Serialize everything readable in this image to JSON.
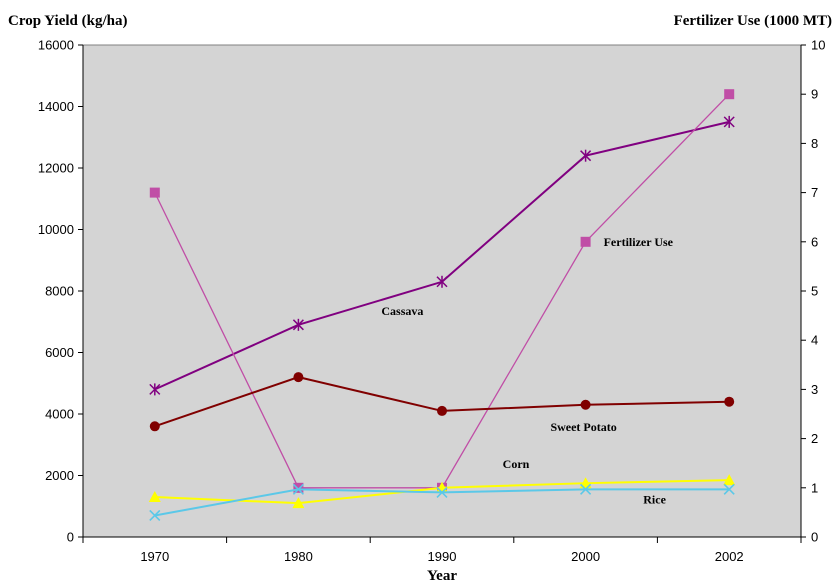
{
  "chart_data": {
    "type": "line",
    "categories": [
      "1970",
      "1980",
      "1990",
      "2000",
      "2002"
    ],
    "ylabel_left": "Crop Yield (kg/ha)",
    "ylabel_right": "Fertilizer Use (1000 MT)",
    "xlabel": "Year",
    "ylim_left": [
      0,
      16000
    ],
    "yticks_left": [
      "0",
      "2000",
      "4000",
      "6000",
      "8000",
      "10000",
      "12000",
      "14000",
      "16000"
    ],
    "ylim_right": [
      0,
      10
    ],
    "yticks_right": [
      "0",
      "1",
      "2",
      "3",
      "4",
      "5",
      "6",
      "7",
      "8",
      "9",
      "10"
    ],
    "grid": false,
    "plot_background": "#d4d4d4",
    "series": [
      {
        "name": "Cassava",
        "axis": "left",
        "color": "#800080",
        "marker": "asterisk",
        "values": [
          4800,
          6900,
          8300,
          12400,
          13500
        ]
      },
      {
        "name": "Fertilizer Use",
        "axis": "right",
        "color": "#c04ea6",
        "marker": "square",
        "values": [
          7.0,
          1.0,
          1.0,
          6.0,
          9.0
        ]
      },
      {
        "name": "Sweet Potato",
        "axis": "left",
        "color": "#800000",
        "marker": "circle",
        "values": [
          3600,
          5200,
          4100,
          4300,
          4400
        ]
      },
      {
        "name": "Corn",
        "axis": "left",
        "color": "#ffff00",
        "marker": "triangle",
        "values": [
          1300,
          1100,
          1600,
          1750,
          1850
        ]
      },
      {
        "name": "Rice",
        "axis": "left",
        "color": "#5bc8e8",
        "marker": "x",
        "values": [
          700,
          1550,
          1450,
          1550,
          1550
        ]
      }
    ]
  }
}
